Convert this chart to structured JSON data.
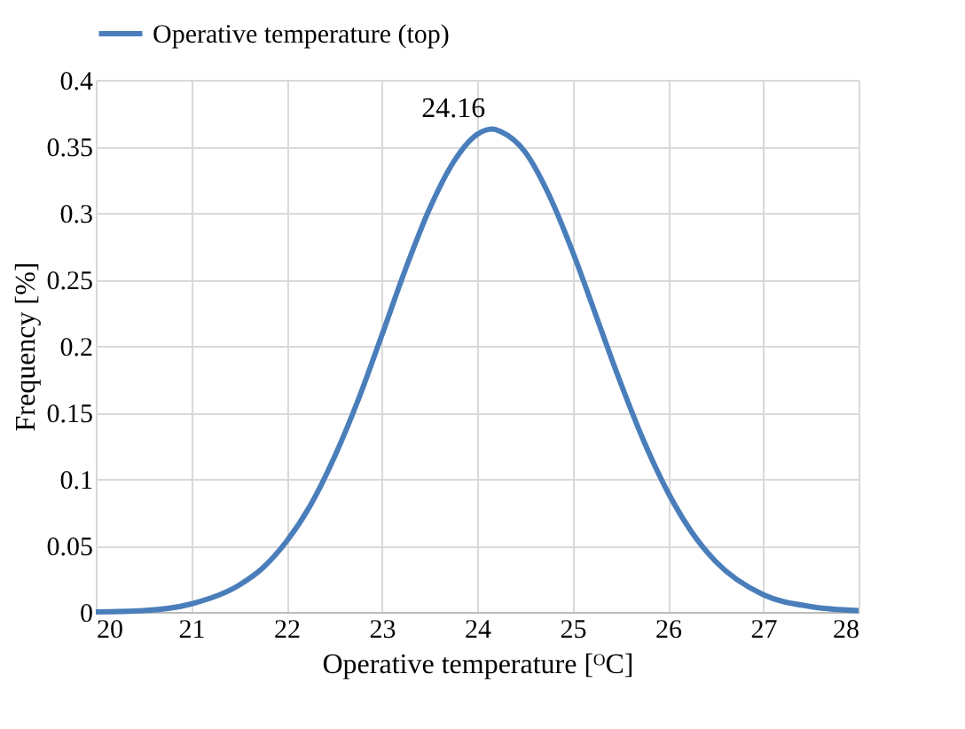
{
  "chart_data": {
    "type": "line",
    "xlabel": "Operative temperature [ᴼC]",
    "ylabel": "Frequency [%]",
    "x": [
      20,
      20.5,
      21,
      21.5,
      21.75,
      22,
      22.25,
      22.5,
      22.75,
      23,
      23.25,
      23.5,
      23.75,
      24,
      24.16,
      24.25,
      24.5,
      24.75,
      25,
      25.25,
      25.5,
      25.75,
      26,
      26.25,
      26.5,
      27,
      27.5,
      28
    ],
    "series": [
      {
        "name": "Operative temperature (top)",
        "color": "#4a7ebb",
        "values": [
          0.0,
          0.001,
          0.006,
          0.02,
          0.033,
          0.053,
          0.08,
          0.116,
          0.159,
          0.208,
          0.258,
          0.303,
          0.338,
          0.359,
          0.363,
          0.361,
          0.346,
          0.314,
          0.271,
          0.222,
          0.173,
          0.128,
          0.09,
          0.06,
          0.038,
          0.013,
          0.004,
          0.001
        ]
      }
    ],
    "xlim": [
      20,
      28
    ],
    "xticks": [
      20,
      21,
      22,
      23,
      24,
      25,
      26,
      27,
      28
    ],
    "ylim": [
      0,
      0.4
    ],
    "yticks": [
      0,
      0.05,
      0.1,
      0.15,
      0.2,
      0.25,
      0.3,
      0.35,
      0.4
    ],
    "annotations": [
      {
        "text": "24.16",
        "x": 24.16,
        "y": 0.363
      }
    ],
    "grid": true,
    "legend": "top",
    "marker": "none",
    "line_style": "solid"
  }
}
